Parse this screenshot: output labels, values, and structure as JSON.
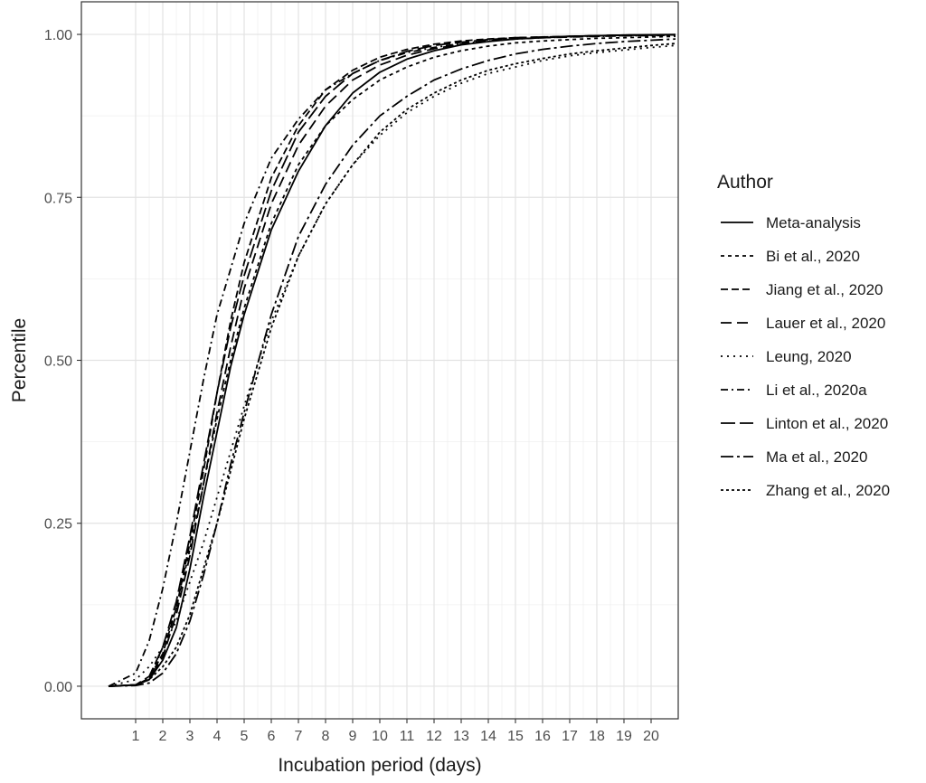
{
  "chart_data": {
    "type": "line",
    "xlabel": "Incubation period (days)",
    "ylabel": "Percentile",
    "xlim": [
      -1,
      21
    ],
    "ylim": [
      -0.05,
      1.05
    ],
    "x_ticks": [
      "1",
      "2",
      "3",
      "4",
      "5",
      "6",
      "7",
      "8",
      "9",
      "10",
      "11",
      "12",
      "13",
      "14",
      "15",
      "16",
      "17",
      "18",
      "19",
      "20"
    ],
    "x_tick_values": [
      1,
      2,
      3,
      4,
      5,
      6,
      7,
      8,
      9,
      10,
      11,
      12,
      13,
      14,
      15,
      16,
      17,
      18,
      19,
      20
    ],
    "y_ticks": [
      "0.00",
      "0.25",
      "0.50",
      "0.75",
      "1.00"
    ],
    "y_tick_values": [
      0,
      0.25,
      0.5,
      0.75,
      1.0
    ],
    "grid": true,
    "legend": {
      "title": "Author",
      "position": "right"
    },
    "x": [
      0,
      1,
      1.5,
      2,
      2.5,
      3,
      3.5,
      4,
      4.5,
      5,
      6,
      7,
      8,
      9,
      10,
      11,
      12,
      13,
      14,
      15,
      16,
      17,
      18,
      19,
      20,
      20.9
    ],
    "series": [
      {
        "name": "Meta-analysis",
        "dash": "",
        "values": [
          0,
          0.002,
          0.01,
          0.04,
          0.09,
          0.18,
          0.29,
          0.39,
          0.49,
          0.57,
          0.7,
          0.79,
          0.86,
          0.91,
          0.942,
          0.962,
          0.975,
          0.984,
          0.989,
          0.993,
          0.995,
          0.997,
          0.998,
          0.999,
          0.9995,
          0.9998
        ]
      },
      {
        "name": "Bi et al., 2020",
        "dash": "4,4",
        "values": [
          0,
          0.002,
          0.01,
          0.06,
          0.12,
          0.21,
          0.31,
          0.41,
          0.5,
          0.58,
          0.71,
          0.8,
          0.86,
          0.9,
          0.93,
          0.95,
          0.965,
          0.975,
          0.982,
          0.987,
          0.99,
          0.992,
          0.994,
          0.995,
          0.996,
          0.997
        ]
      },
      {
        "name": "Jiang et al., 2020",
        "dash": "8,4",
        "values": [
          0,
          0.002,
          0.012,
          0.05,
          0.12,
          0.22,
          0.33,
          0.45,
          0.56,
          0.65,
          0.78,
          0.86,
          0.915,
          0.945,
          0.965,
          0.977,
          0.985,
          0.99,
          0.993,
          0.995,
          0.996,
          0.997,
          0.998,
          0.999,
          0.999,
          0.9995
        ]
      },
      {
        "name": "Lauer et al., 2020",
        "dash": "12,6",
        "values": [
          0,
          0.002,
          0.01,
          0.045,
          0.11,
          0.2,
          0.31,
          0.42,
          0.52,
          0.61,
          0.74,
          0.83,
          0.89,
          0.93,
          0.953,
          0.968,
          0.978,
          0.985,
          0.99,
          0.993,
          0.995,
          0.996,
          0.997,
          0.998,
          0.999,
          0.9993
        ]
      },
      {
        "name": "Leung, 2020",
        "dash": "2,5",
        "values": [
          0,
          0.01,
          0.03,
          0.06,
          0.1,
          0.16,
          0.22,
          0.29,
          0.36,
          0.43,
          0.56,
          0.66,
          0.74,
          0.8,
          0.845,
          0.88,
          0.905,
          0.925,
          0.94,
          0.95,
          0.96,
          0.967,
          0.972,
          0.976,
          0.98,
          0.983
        ]
      },
      {
        "name": "Li et al., 2020a",
        "dash": "8,4,2,4",
        "values": [
          0,
          0.02,
          0.07,
          0.15,
          0.25,
          0.36,
          0.47,
          0.57,
          0.64,
          0.71,
          0.81,
          0.87,
          0.915,
          0.94,
          0.96,
          0.972,
          0.98,
          0.986,
          0.99,
          0.993,
          0.995,
          0.996,
          0.997,
          0.998,
          0.998,
          0.999
        ]
      },
      {
        "name": "Linton et al., 2020",
        "dash": "16,5",
        "values": [
          0,
          0.002,
          0.015,
          0.06,
          0.13,
          0.23,
          0.34,
          0.45,
          0.55,
          0.63,
          0.76,
          0.85,
          0.905,
          0.94,
          0.96,
          0.974,
          0.983,
          0.988,
          0.992,
          0.995,
          0.996,
          0.997,
          0.998,
          0.999,
          0.999,
          0.9995
        ]
      },
      {
        "name": "Ma et al., 2020",
        "dash": "14,4,3,4",
        "values": [
          0,
          0.001,
          0.005,
          0.02,
          0.05,
          0.1,
          0.17,
          0.25,
          0.34,
          0.42,
          0.57,
          0.69,
          0.77,
          0.83,
          0.875,
          0.905,
          0.93,
          0.947,
          0.96,
          0.97,
          0.977,
          0.982,
          0.986,
          0.989,
          0.991,
          0.993
        ]
      },
      {
        "name": "Zhang et al., 2020",
        "dash": "3,3",
        "values": [
          0,
          0.002,
          0.01,
          0.03,
          0.06,
          0.11,
          0.18,
          0.25,
          0.33,
          0.41,
          0.55,
          0.66,
          0.74,
          0.8,
          0.85,
          0.885,
          0.91,
          0.93,
          0.945,
          0.955,
          0.963,
          0.97,
          0.975,
          0.979,
          0.983,
          0.986
        ]
      }
    ]
  }
}
